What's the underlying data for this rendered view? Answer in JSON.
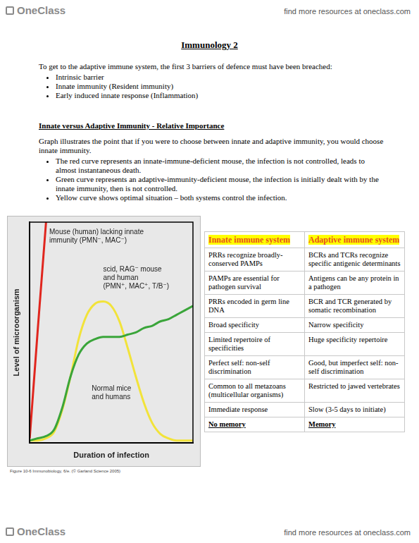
{
  "header": {
    "logo": "OneClass",
    "link": "find more resources at oneclass.com"
  },
  "title": "Immunology 2",
  "intro": "To get to the adaptive immune system, the first 3 barriers of defence must have been breached:",
  "intro_bullets": [
    "Intrinsic barrier",
    "Innate immunity (Resident immunity)",
    "Early induced innate response (Inflammation)"
  ],
  "section_heading": "Innate versus Adaptive Immunity - Relative Importance",
  "section_text": "Graph illustrates the point that if you were to choose between innate and adaptive immunity, you would choose innate immunity.",
  "section_bullets": [
    "The red curve represents an innate-immune-deficient mouse, the infection is not controlled, leads to almost instantaneous death.",
    "Green curve represents an adaptive-immunity-deficient mouse, the infection is initially dealt with by the innate immunity, then is not controlled.",
    "Yellow curve shows optimal situation – both systems control the infection."
  ],
  "chart_data": {
    "type": "line",
    "xlabel": "Duration of infection",
    "ylabel": "Level of microorganism",
    "x": [
      0,
      5,
      10,
      15,
      20,
      25,
      30,
      35,
      40,
      45,
      50,
      55,
      60,
      65,
      70,
      75,
      80,
      85,
      90,
      95,
      100
    ],
    "xlim": [
      0,
      100
    ],
    "ylim": [
      0,
      100
    ],
    "grid": false,
    "tick_labels": false,
    "series": [
      {
        "color": "#e0261e",
        "values": [
          2,
          52,
          100,
          null,
          null,
          null,
          null,
          null,
          null,
          null,
          null,
          null,
          null,
          null,
          null,
          null,
          null,
          null,
          null,
          null,
          null
        ]
      },
      {
        "color": "#3aa53a",
        "values": [
          1,
          2,
          3,
          6,
          16,
          30,
          40,
          45,
          47,
          48,
          48,
          48,
          49,
          50,
          52,
          53,
          55,
          56,
          58,
          60,
          62
        ]
      },
      {
        "color": "#f2e33a",
        "values": [
          1,
          1,
          2,
          5,
          15,
          30,
          47,
          58,
          63,
          64,
          62,
          55,
          43,
          30,
          18,
          9,
          4,
          2,
          1,
          1,
          1
        ]
      }
    ],
    "annotations": [
      [
        "Mouse (human) lacking innate",
        "immunity (PMN⁻, MAC⁻)"
      ],
      [
        "scid, RAG⁻ mouse",
        "and human",
        "(PMN⁺, MAC⁺, T/B⁻)"
      ],
      [
        "Normal mice",
        "and humans"
      ]
    ]
  },
  "figure_caption": "Figure 10-6 Immunobiology, 6/e. (© Garland Science 2005)",
  "table": {
    "header": [
      "Innate immune system",
      "Adaptive immune system"
    ],
    "rows": [
      [
        "PRRs recognize broadly-conserved PAMPs",
        "BCRs and TCRs recognize specific antigenic determinants"
      ],
      [
        "PAMPs are essential for pathogen survival",
        "Antigens can be any protein in a pathogen"
      ],
      [
        "PRRs encoded in germ line DNA",
        "BCR and TCR generated by somatic recombination"
      ],
      [
        "Broad specificity",
        "Narrow specificity"
      ],
      [
        "Limited repertoire of specificities",
        "Huge specificity repertoire"
      ],
      [
        "Perfect self: non-self discrimination",
        "Good, but imperfect self: non-self discrimination"
      ],
      [
        "Common to all metazoans (multicellular organisms)",
        "Restricted to jawed vertebrates"
      ],
      [
        "Immediate response",
        "Slow (3-5 days to initiate)"
      ],
      [
        "No memory",
        "Memory"
      ]
    ]
  },
  "footer": {
    "logo": "OneClass",
    "link": "find more resources at oneclass.com"
  }
}
